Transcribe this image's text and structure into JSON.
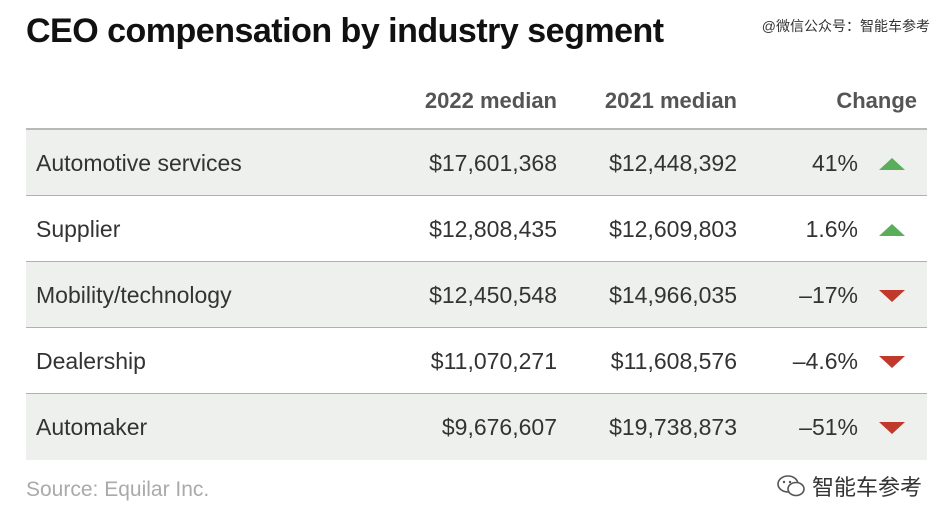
{
  "title": "CEO compensation by industry segment",
  "watermark_top": "@微信公众号：智能车参考",
  "watermark_bottom": "智能车参考",
  "source": "Source: Equilar Inc.",
  "colors": {
    "up": "#5aad5a",
    "down": "#c0392b",
    "row_shade": "#eef0ee"
  },
  "chart_data": {
    "type": "table",
    "columns": [
      "",
      "2022 median",
      "2021 median",
      "Change"
    ],
    "rows": [
      {
        "segment": "Automotive services",
        "median_2022": "$17,601,368",
        "median_2021": "$12,448,392",
        "change": "41%",
        "direction": "up"
      },
      {
        "segment": "Supplier",
        "median_2022": "$12,808,435",
        "median_2021": "$12,609,803",
        "change": "1.6%",
        "direction": "up"
      },
      {
        "segment": "Mobility/technology",
        "median_2022": "$12,450,548",
        "median_2021": "$14,966,035",
        "change": "–17%",
        "direction": "down"
      },
      {
        "segment": "Dealership",
        "median_2022": "$11,070,271",
        "median_2021": "$11,608,576",
        "change": "–4.6%",
        "direction": "down"
      },
      {
        "segment": "Automaker",
        "median_2022": "$9,676,607",
        "median_2021": "$19,738,873",
        "change": "–51%",
        "direction": "down"
      }
    ]
  }
}
